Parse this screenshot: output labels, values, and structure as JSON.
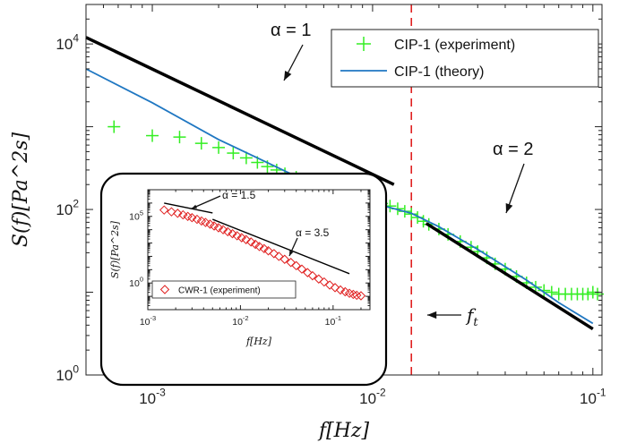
{
  "chart_data": [
    {
      "type": "scatter",
      "scale": "log-log",
      "xlabel": "f[Hz]",
      "ylabel": "S(f)[Pa^2s]",
      "xlim": [
        0.0005,
        0.11
      ],
      "ylim": [
        1,
        30000
      ],
      "x_ticks": [
        0.001,
        0.01,
        0.1
      ],
      "x_tick_labels": [
        {
          "base": "10",
          "exp": "-3"
        },
        {
          "base": "10",
          "exp": "-2"
        },
        {
          "base": "10",
          "exp": "-1"
        }
      ],
      "y_ticks": [
        1,
        100,
        10000
      ],
      "y_tick_labels": [
        {
          "base": "10",
          "exp": "0"
        },
        {
          "base": "10",
          "exp": "2"
        },
        {
          "base": "10",
          "exp": "4"
        }
      ],
      "legend_position": "top-right",
      "series": [
        {
          "name": "CIP-1 (experiment)",
          "marker": "plus",
          "color": "#33ee22",
          "x": [
            0.00067,
            0.001,
            0.00133,
            0.00167,
            0.002,
            0.00233,
            0.00267,
            0.003,
            0.00333,
            0.00367,
            0.004,
            0.0045,
            0.005,
            0.0055,
            0.006,
            0.0065,
            0.007,
            0.0075,
            0.008,
            0.0085,
            0.009,
            0.0095,
            0.01,
            0.011,
            0.012,
            0.013,
            0.014,
            0.015,
            0.016,
            0.017,
            0.018,
            0.02,
            0.022,
            0.025,
            0.028,
            0.03,
            0.033,
            0.036,
            0.04,
            0.045,
            0.05,
            0.055,
            0.06,
            0.065,
            0.07,
            0.075,
            0.08,
            0.085,
            0.09,
            0.095,
            0.1,
            0.105
          ],
          "y": [
            1000,
            780,
            750,
            630,
            560,
            480,
            420,
            370,
            330,
            300,
            270,
            245,
            225,
            205,
            190,
            175,
            165,
            155,
            150,
            142,
            140,
            132,
            125,
            118,
            110,
            102,
            95,
            88,
            80,
            72,
            66,
            58,
            50,
            41,
            35,
            31,
            26,
            22,
            19,
            15.5,
            13,
            11.5,
            10.5,
            10,
            9.5,
            9.5,
            9.5,
            9.5,
            9.5,
            9.5,
            10,
            9.5
          ]
        },
        {
          "name": "CIP-1 (theory)",
          "line": true,
          "color": "#1f77c2",
          "x": [
            0.0005,
            0.001,
            0.002,
            0.003,
            0.005,
            0.007,
            0.01,
            0.015,
            0.02,
            0.03,
            0.05,
            0.07,
            0.1
          ],
          "y": [
            5000,
            1950,
            700,
            420,
            220,
            160,
            120,
            90,
            62,
            33,
            14,
            7.5,
            4.2
          ]
        }
      ],
      "reference_lines": [
        {
          "label": "α = 1",
          "x": [
            0.0005,
            0.0125
          ],
          "y": [
            12000,
            200
          ]
        },
        {
          "label": "α = 2",
          "x": [
            0.0175,
            0.1
          ],
          "y": [
            68,
            3.6
          ]
        }
      ],
      "vline": {
        "label": "f_t",
        "x": 0.015,
        "color": "#e02020"
      },
      "annotations": {
        "alpha1": "α = 1",
        "alpha2": "α = 2",
        "ft_base": "f",
        "ft_sub": "t"
      }
    },
    {
      "type": "scatter",
      "scale": "log-log",
      "position": "inset",
      "xlabel": "f[Hz]",
      "ylabel": "S(f)[Pa^2s]",
      "xlim": [
        0.001,
        0.25
      ],
      "ylim": [
        0.01,
        10000000
      ],
      "x_ticks": [
        0.001,
        0.01,
        0.1
      ],
      "x_tick_labels": [
        {
          "base": "10",
          "exp": "-3"
        },
        {
          "base": "10",
          "exp": "-2"
        },
        {
          "base": "10",
          "exp": "-1"
        }
      ],
      "y_ticks": [
        1,
        100000
      ],
      "y_tick_labels": [
        {
          "base": "10",
          "exp": "0"
        },
        {
          "base": "10",
          "exp": "5"
        }
      ],
      "legend_position": "bottom-left",
      "series": [
        {
          "name": "CWR-1 (experiment)",
          "marker": "diamond",
          "color": "#e02020",
          "x": [
            0.0015,
            0.0018,
            0.0021,
            0.0024,
            0.0027,
            0.003,
            0.0034,
            0.0038,
            0.0042,
            0.0047,
            0.0052,
            0.0058,
            0.0065,
            0.0073,
            0.0082,
            0.0092,
            0.0103,
            0.0115,
            0.013,
            0.0145,
            0.016,
            0.018,
            0.02,
            0.023,
            0.026,
            0.03,
            0.035,
            0.04,
            0.046,
            0.053,
            0.06,
            0.07,
            0.08,
            0.092,
            0.105,
            0.12,
            0.135,
            0.15,
            0.165,
            0.18,
            0.2
          ],
          "y": [
            300000,
            220000,
            170000,
            130000,
            100000,
            80000,
            60000,
            45000,
            35000,
            26000,
            19000,
            14000,
            10000,
            7000,
            5000,
            3500,
            2500,
            1800,
            1200,
            800,
            550,
            380,
            260,
            160,
            100,
            60,
            35,
            20,
            11,
            6,
            3.5,
            2,
            1.2,
            0.7,
            0.45,
            0.3,
            0.22,
            0.17,
            0.14,
            0.12,
            0.11
          ]
        }
      ],
      "reference_lines": [
        {
          "label": "α = 1.5",
          "x": [
            0.0015,
            0.005
          ],
          "y": [
            1000000,
            180000
          ]
        },
        {
          "label": "α = 3.5",
          "x": [
            0.005,
            0.15
          ],
          "y": [
            60000,
            5
          ]
        }
      ],
      "annotations": {
        "alpha1": "α = 1.5",
        "alpha2": "α = 3.5"
      }
    }
  ]
}
